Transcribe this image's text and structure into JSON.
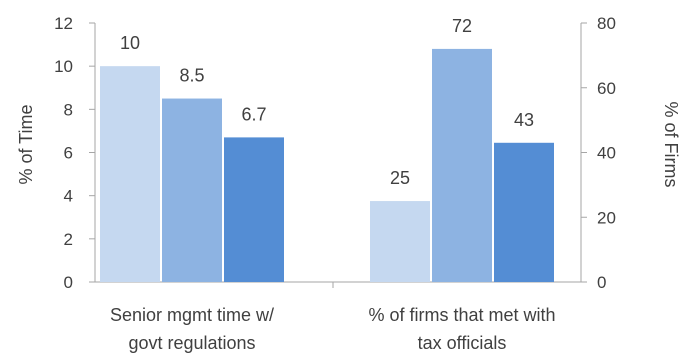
{
  "chart_data": {
    "type": "bar",
    "categories": [
      "Senior mgmt time w/ govt regulations",
      "% of firms that met with tax officials"
    ],
    "category_label_lines": [
      [
        "Senior mgmt time w/",
        "govt regulations"
      ],
      [
        "% of firms that met with",
        "tax officials"
      ]
    ],
    "series": [
      {
        "color": "#c5d8f0",
        "values": [
          10,
          25
        ],
        "labels": [
          "10",
          "25"
        ]
      },
      {
        "color": "#8db3e2",
        "values": [
          8.5,
          72
        ],
        "labels": [
          "8.5",
          "72"
        ]
      },
      {
        "color": "#548dd4",
        "values": [
          6.7,
          43
        ],
        "labels": [
          "6.7",
          "43"
        ]
      }
    ],
    "value_axis_per_category": [
      "left",
      "right"
    ],
    "left_axis": {
      "label": "% of Time",
      "ylim": [
        0,
        12
      ],
      "ticks": [
        0,
        2,
        4,
        6,
        8,
        10,
        12
      ]
    },
    "right_axis": {
      "label": "% of Firms",
      "ylim": [
        0,
        80
      ],
      "ticks": [
        0,
        20,
        40,
        60,
        80
      ]
    },
    "grid": false,
    "legend": "none"
  }
}
